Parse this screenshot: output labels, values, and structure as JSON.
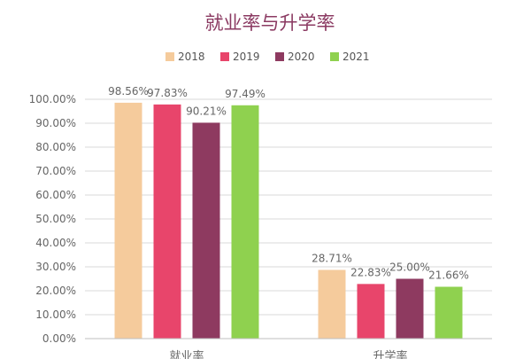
{
  "chart_data": {
    "type": "bar",
    "title": "就业率与升学率",
    "categories": [
      "就业率",
      "升学率"
    ],
    "series": [
      {
        "name": "2018",
        "values": [
          98.56,
          28.71
        ],
        "color": "#f5cb9c"
      },
      {
        "name": "2019",
        "values": [
          97.83,
          22.83
        ],
        "color": "#e8456b"
      },
      {
        "name": "2020",
        "values": [
          90.21,
          25.0
        ],
        "color": "#8e3a60"
      },
      {
        "name": "2021",
        "values": [
          97.49,
          21.66
        ],
        "color": "#8fd14f"
      }
    ],
    "data_labels": [
      [
        "98.56%",
        "28.71%"
      ],
      [
        "97.83%",
        "22.83%"
      ],
      [
        "90.21%",
        "25.00%"
      ],
      [
        "97.49%",
        "21.66%"
      ]
    ],
    "ylim": [
      0,
      100
    ],
    "yticks": [
      "0.00%",
      "10.00%",
      "20.00%",
      "30.00%",
      "40.00%",
      "50.00%",
      "60.00%",
      "70.00%",
      "80.00%",
      "90.00%",
      "100.00%"
    ],
    "xlabel": "",
    "ylabel": "",
    "grid": true,
    "legend_position": "top"
  }
}
